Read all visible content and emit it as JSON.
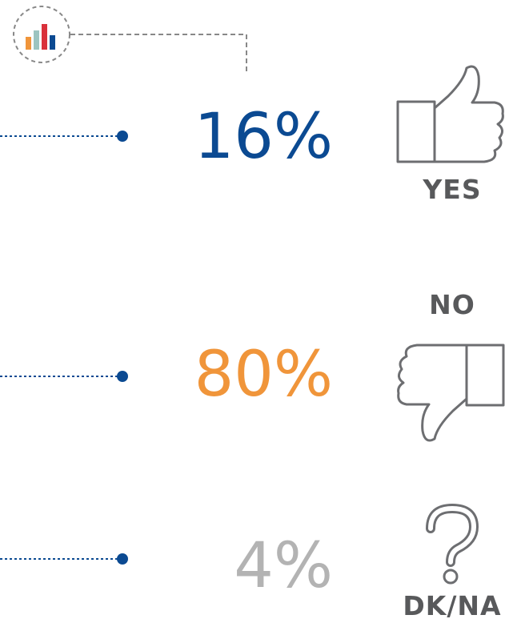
{
  "items": [
    {
      "value": "16%",
      "label": "YES",
      "color": "#0b4a92"
    },
    {
      "value": "80%",
      "label": "NO",
      "color": "#f0953a"
    },
    {
      "value": "4%",
      "label": "DK/NA",
      "color": "#b3b3b3"
    }
  ]
}
